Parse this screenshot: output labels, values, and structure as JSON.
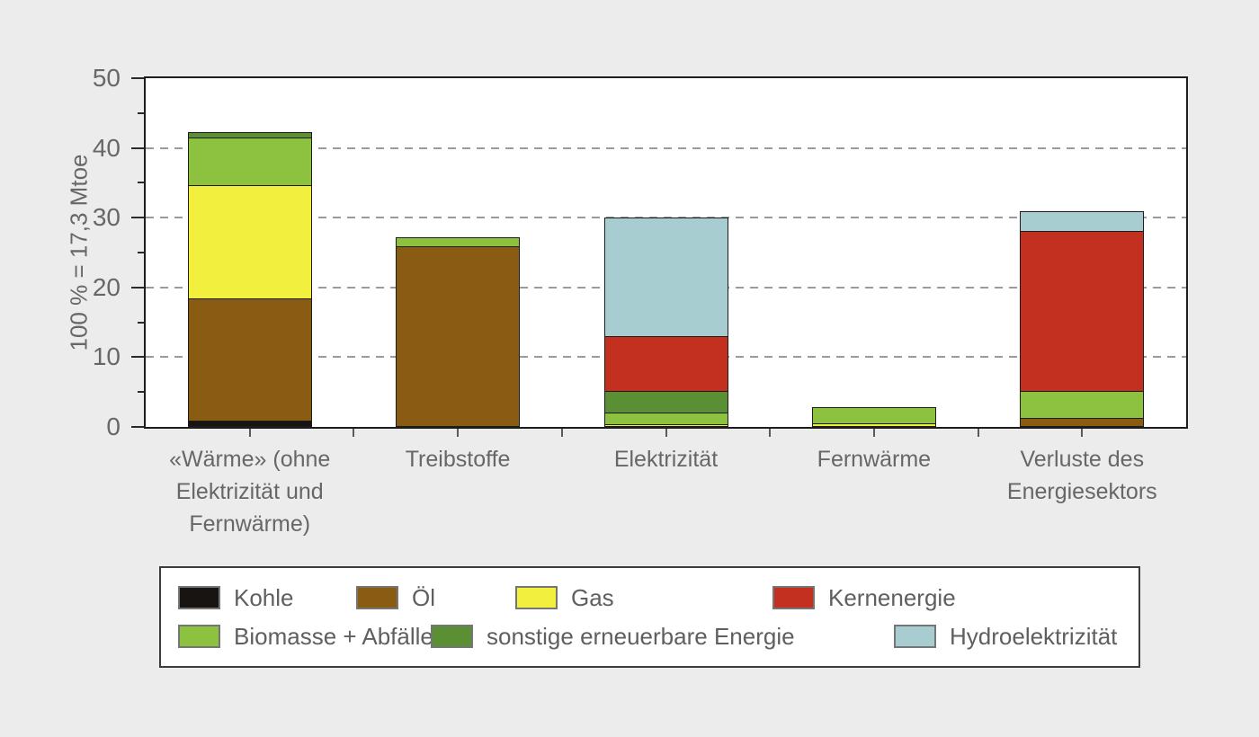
{
  "canvas": {
    "background": "#ececec",
    "plot_background": "#ffffff",
    "frame_color": "#1d1d1d",
    "text_color": "#676767"
  },
  "chart_data": {
    "type": "bar",
    "stacked": true,
    "ylabel": "100 % = 17,3 Mtoe",
    "xlabel": "",
    "ylim": [
      0,
      50
    ],
    "yticks": [
      0,
      10,
      20,
      30,
      40,
      50
    ],
    "yticks_minor": [
      5,
      15,
      25,
      35,
      45
    ],
    "gridlines": [
      10,
      20,
      30,
      40
    ],
    "grid_style": "horizontal dashed grey",
    "legend_position": "boxed below plot, two rows",
    "categories": [
      "«Wärme» (ohne\nElektrizität und\nFernwärme)",
      "Treibstoffe",
      "Elektrizität",
      "Fernwärme",
      "Verluste des\nEnergiesektors"
    ],
    "series": [
      {
        "name": "Kohle",
        "color": "#171411",
        "values": [
          1.0,
          0,
          0,
          0,
          0
        ]
      },
      {
        "name": "Öl",
        "color": "#8a5c13",
        "values": [
          17.5,
          26.0,
          0,
          0,
          1.3
        ]
      },
      {
        "name": "Gas",
        "color": "#f3ef3e",
        "values": [
          16.2,
          0,
          0.5,
          0.6,
          0
        ]
      },
      {
        "name": "Biomasse + Abfälle",
        "color": "#8cc23f",
        "values": [
          6.9,
          1.2,
          1.6,
          2.3,
          3.9
        ]
      },
      {
        "name": "sonstige erneuerbare Energie",
        "color": "#5b8f33",
        "values": [
          0.7,
          0,
          3.1,
          0,
          0
        ]
      },
      {
        "name": "Kernenergie",
        "color": "#c4301f",
        "values": [
          0,
          0,
          7.9,
          0,
          23.0
        ]
      },
      {
        "name": "Hydroelektrizität",
        "color": "#a7cdd1",
        "values": [
          0,
          0,
          16.9,
          0,
          2.7
        ]
      }
    ],
    "bar_totals": [
      42.3,
      27.2,
      30.0,
      2.9,
      30.9
    ]
  },
  "legend": {
    "rows": [
      {
        "items": [
          {
            "label": "Kohle",
            "color": "#171411"
          },
          {
            "label": "Öl",
            "color": "#8a5c13"
          },
          {
            "label": "Gas",
            "color": "#f3ef3e"
          },
          {
            "label": "Kernenergie",
            "color": "#c4301f"
          }
        ]
      },
      {
        "items": [
          {
            "label": "Biomasse + Abfälle",
            "color": "#8cc23f"
          },
          {
            "label": "sonstige erneuerbare Energie",
            "color": "#5b8f33"
          },
          {
            "label": "Hydroelektrizität",
            "color": "#a7cdd1"
          }
        ]
      }
    ]
  }
}
